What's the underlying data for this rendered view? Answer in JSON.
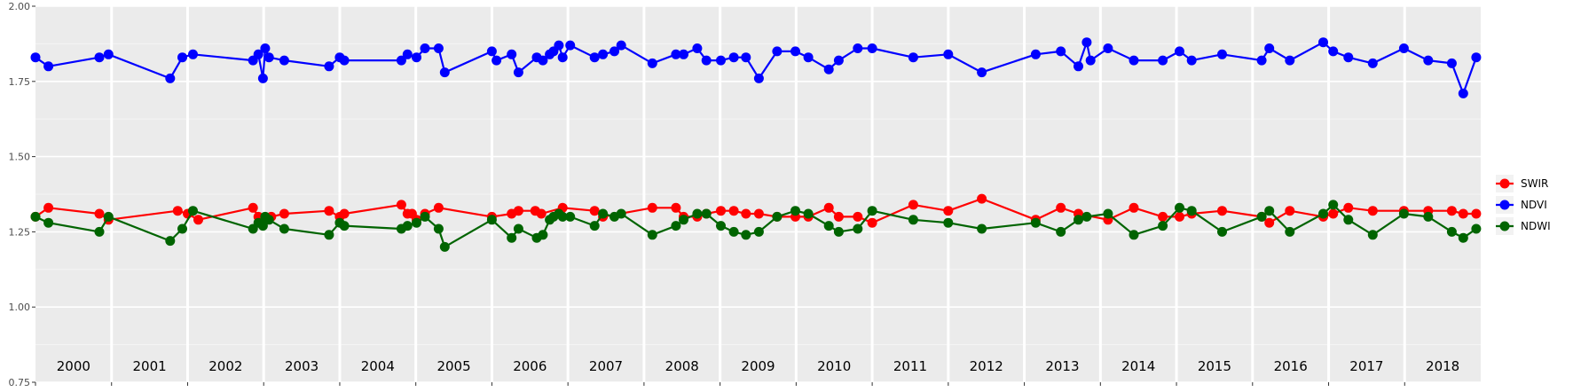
{
  "chart_data": {
    "type": "line",
    "title": "",
    "xlabel": "",
    "ylabel": "",
    "ylim": [
      0.75,
      2.0
    ],
    "yticks": [
      "0.75",
      "1.00",
      "1.25",
      "1.50",
      "1.75",
      "2.00"
    ],
    "xlim": [
      2000.0,
      2019.0
    ],
    "years": [
      "2000",
      "2001",
      "2002",
      "2003",
      "2004",
      "2005",
      "2006",
      "2007",
      "2008",
      "2009",
      "2010",
      "2011",
      "2012",
      "2013",
      "2014",
      "2015",
      "2016",
      "2017",
      "2018"
    ],
    "grid": true,
    "legend_position": "right",
    "series": [
      {
        "name": "SWIR",
        "color": "#ff0000",
        "points": [
          [
            2000.0,
            1.3
          ],
          [
            2000.17,
            1.33
          ],
          [
            2000.84,
            1.31
          ],
          [
            2000.96,
            1.29
          ],
          [
            2001.87,
            1.32
          ],
          [
            2002.0,
            1.31
          ],
          [
            2002.14,
            1.29
          ],
          [
            2002.86,
            1.33
          ],
          [
            2002.93,
            1.3
          ],
          [
            2003.01,
            1.29
          ],
          [
            2003.1,
            1.3
          ],
          [
            2003.27,
            1.31
          ],
          [
            2003.86,
            1.32
          ],
          [
            2004.0,
            1.3
          ],
          [
            2004.06,
            1.31
          ],
          [
            2004.81,
            1.34
          ],
          [
            2004.89,
            1.31
          ],
          [
            2004.95,
            1.31
          ],
          [
            2005.01,
            1.29
          ],
          [
            2005.12,
            1.31
          ],
          [
            2005.3,
            1.33
          ],
          [
            2006.0,
            1.3
          ],
          [
            2006.26,
            1.31
          ],
          [
            2006.35,
            1.32
          ],
          [
            2006.57,
            1.32
          ],
          [
            2006.65,
            1.31
          ],
          [
            2006.93,
            1.33
          ],
          [
            2007.35,
            1.32
          ],
          [
            2007.46,
            1.3
          ],
          [
            2008.11,
            1.33
          ],
          [
            2008.42,
            1.33
          ],
          [
            2008.52,
            1.3
          ],
          [
            2008.7,
            1.3
          ],
          [
            2008.82,
            1.31
          ],
          [
            2009.01,
            1.32
          ],
          [
            2009.18,
            1.32
          ],
          [
            2009.34,
            1.31
          ],
          [
            2009.51,
            1.31
          ],
          [
            2009.75,
            1.3
          ],
          [
            2009.99,
            1.3
          ],
          [
            2010.16,
            1.3
          ],
          [
            2010.43,
            1.33
          ],
          [
            2010.56,
            1.3
          ],
          [
            2010.81,
            1.3
          ],
          [
            2011.0,
            1.28
          ],
          [
            2011.54,
            1.34
          ],
          [
            2012.0,
            1.32
          ],
          [
            2012.44,
            1.36
          ],
          [
            2013.15,
            1.29
          ],
          [
            2013.48,
            1.33
          ],
          [
            2013.71,
            1.31
          ],
          [
            2014.1,
            1.29
          ],
          [
            2014.44,
            1.33
          ],
          [
            2014.82,
            1.3
          ],
          [
            2015.04,
            1.3
          ],
          [
            2015.2,
            1.31
          ],
          [
            2015.6,
            1.32
          ],
          [
            2016.12,
            1.3
          ],
          [
            2016.22,
            1.28
          ],
          [
            2016.49,
            1.32
          ],
          [
            2016.93,
            1.3
          ],
          [
            2017.06,
            1.31
          ],
          [
            2017.26,
            1.33
          ],
          [
            2017.58,
            1.32
          ],
          [
            2017.99,
            1.32
          ],
          [
            2018.31,
            1.32
          ],
          [
            2018.62,
            1.32
          ],
          [
            2018.77,
            1.31
          ],
          [
            2018.94,
            1.31
          ]
        ]
      },
      {
        "name": "NDVI",
        "color": "#0000ff",
        "points": [
          [
            2000.0,
            1.83
          ],
          [
            2000.17,
            1.8
          ],
          [
            2000.84,
            1.83
          ],
          [
            2000.96,
            1.84
          ],
          [
            2001.77,
            1.76
          ],
          [
            2001.93,
            1.83
          ],
          [
            2002.07,
            1.84
          ],
          [
            2002.86,
            1.82
          ],
          [
            2002.93,
            1.84
          ],
          [
            2002.99,
            1.76
          ],
          [
            2003.02,
            1.86
          ],
          [
            2003.07,
            1.83
          ],
          [
            2003.27,
            1.82
          ],
          [
            2003.86,
            1.8
          ],
          [
            2004.0,
            1.83
          ],
          [
            2004.06,
            1.82
          ],
          [
            2004.81,
            1.82
          ],
          [
            2004.89,
            1.84
          ],
          [
            2005.01,
            1.83
          ],
          [
            2005.12,
            1.86
          ],
          [
            2005.3,
            1.86
          ],
          [
            2005.38,
            1.78
          ],
          [
            2006.0,
            1.85
          ],
          [
            2006.06,
            1.82
          ],
          [
            2006.26,
            1.84
          ],
          [
            2006.35,
            1.78
          ],
          [
            2006.59,
            1.83
          ],
          [
            2006.67,
            1.82
          ],
          [
            2006.76,
            1.84
          ],
          [
            2006.81,
            1.85
          ],
          [
            2006.88,
            1.87
          ],
          [
            2006.93,
            1.83
          ],
          [
            2007.03,
            1.87
          ],
          [
            2007.35,
            1.83
          ],
          [
            2007.46,
            1.84
          ],
          [
            2007.61,
            1.85
          ],
          [
            2007.7,
            1.87
          ],
          [
            2008.11,
            1.81
          ],
          [
            2008.42,
            1.84
          ],
          [
            2008.52,
            1.84
          ],
          [
            2008.7,
            1.86
          ],
          [
            2008.82,
            1.82
          ],
          [
            2009.01,
            1.82
          ],
          [
            2009.18,
            1.83
          ],
          [
            2009.34,
            1.83
          ],
          [
            2009.51,
            1.76
          ],
          [
            2009.75,
            1.85
          ],
          [
            2009.99,
            1.85
          ],
          [
            2010.16,
            1.83
          ],
          [
            2010.43,
            1.79
          ],
          [
            2010.56,
            1.82
          ],
          [
            2010.81,
            1.86
          ],
          [
            2011.0,
            1.86
          ],
          [
            2011.54,
            1.83
          ],
          [
            2012.0,
            1.84
          ],
          [
            2012.44,
            1.78
          ],
          [
            2013.15,
            1.84
          ],
          [
            2013.48,
            1.85
          ],
          [
            2013.71,
            1.8
          ],
          [
            2013.82,
            1.88
          ],
          [
            2013.87,
            1.82
          ],
          [
            2014.1,
            1.86
          ],
          [
            2014.44,
            1.82
          ],
          [
            2014.82,
            1.82
          ],
          [
            2015.04,
            1.85
          ],
          [
            2015.2,
            1.82
          ],
          [
            2015.6,
            1.84
          ],
          [
            2016.12,
            1.82
          ],
          [
            2016.22,
            1.86
          ],
          [
            2016.49,
            1.82
          ],
          [
            2016.93,
            1.88
          ],
          [
            2017.06,
            1.85
          ],
          [
            2017.26,
            1.83
          ],
          [
            2017.58,
            1.81
          ],
          [
            2017.99,
            1.86
          ],
          [
            2018.31,
            1.82
          ],
          [
            2018.62,
            1.81
          ],
          [
            2018.77,
            1.71
          ],
          [
            2018.94,
            1.83
          ]
        ]
      },
      {
        "name": "NDWI",
        "color": "#006400",
        "points": [
          [
            2000.0,
            1.3
          ],
          [
            2000.17,
            1.28
          ],
          [
            2000.84,
            1.25
          ],
          [
            2000.96,
            1.3
          ],
          [
            2001.77,
            1.22
          ],
          [
            2001.93,
            1.26
          ],
          [
            2002.07,
            1.32
          ],
          [
            2002.86,
            1.26
          ],
          [
            2002.93,
            1.28
          ],
          [
            2002.99,
            1.27
          ],
          [
            2003.02,
            1.3
          ],
          [
            2003.07,
            1.29
          ],
          [
            2003.27,
            1.26
          ],
          [
            2003.86,
            1.24
          ],
          [
            2004.0,
            1.28
          ],
          [
            2004.06,
            1.27
          ],
          [
            2004.81,
            1.26
          ],
          [
            2004.89,
            1.27
          ],
          [
            2005.01,
            1.28
          ],
          [
            2005.12,
            1.3
          ],
          [
            2005.3,
            1.26
          ],
          [
            2005.38,
            1.2
          ],
          [
            2006.0,
            1.29
          ],
          [
            2006.26,
            1.23
          ],
          [
            2006.35,
            1.26
          ],
          [
            2006.59,
            1.23
          ],
          [
            2006.67,
            1.24
          ],
          [
            2006.76,
            1.29
          ],
          [
            2006.81,
            1.3
          ],
          [
            2006.88,
            1.31
          ],
          [
            2006.93,
            1.3
          ],
          [
            2007.03,
            1.3
          ],
          [
            2007.35,
            1.27
          ],
          [
            2007.46,
            1.31
          ],
          [
            2007.61,
            1.3
          ],
          [
            2007.7,
            1.31
          ],
          [
            2008.11,
            1.24
          ],
          [
            2008.42,
            1.27
          ],
          [
            2008.52,
            1.29
          ],
          [
            2008.7,
            1.31
          ],
          [
            2008.82,
            1.31
          ],
          [
            2009.01,
            1.27
          ],
          [
            2009.18,
            1.25
          ],
          [
            2009.34,
            1.24
          ],
          [
            2009.51,
            1.25
          ],
          [
            2009.75,
            1.3
          ],
          [
            2009.99,
            1.32
          ],
          [
            2010.16,
            1.31
          ],
          [
            2010.43,
            1.27
          ],
          [
            2010.56,
            1.25
          ],
          [
            2010.81,
            1.26
          ],
          [
            2011.0,
            1.32
          ],
          [
            2011.54,
            1.29
          ],
          [
            2012.0,
            1.28
          ],
          [
            2012.44,
            1.26
          ],
          [
            2013.15,
            1.28
          ],
          [
            2013.48,
            1.25
          ],
          [
            2013.71,
            1.29
          ],
          [
            2013.82,
            1.3
          ],
          [
            2014.1,
            1.31
          ],
          [
            2014.44,
            1.24
          ],
          [
            2014.82,
            1.27
          ],
          [
            2015.04,
            1.33
          ],
          [
            2015.2,
            1.32
          ],
          [
            2015.6,
            1.25
          ],
          [
            2016.12,
            1.3
          ],
          [
            2016.22,
            1.32
          ],
          [
            2016.49,
            1.25
          ],
          [
            2016.93,
            1.31
          ],
          [
            2017.06,
            1.34
          ],
          [
            2017.26,
            1.29
          ],
          [
            2017.58,
            1.24
          ],
          [
            2017.99,
            1.31
          ],
          [
            2018.31,
            1.3
          ],
          [
            2018.62,
            1.25
          ],
          [
            2018.77,
            1.23
          ],
          [
            2018.94,
            1.26
          ]
        ]
      }
    ]
  }
}
